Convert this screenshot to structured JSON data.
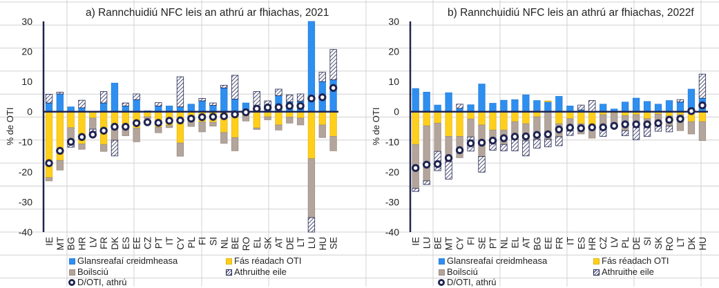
{
  "colors": {
    "credit_flows": "#2e8ff0",
    "real_gdp_growth": "#ffcf1c",
    "inflation": "#b3a59b",
    "other_changes": "#1f2450",
    "marker": "#1f2450",
    "axis": "#1f2450",
    "gridline": "#d0d0d0"
  },
  "legend": {
    "credit_flows": "Glansreafaí creidmheasa",
    "real_gdp_growth": "Fás réadach OTI",
    "inflation": "Boilsciú",
    "other_changes": "Athruithe eile",
    "debt_change": "D/OTI, athrú"
  },
  "chart_data": [
    {
      "type": "bar",
      "stacked": true,
      "title": "a) Rannchuidiú NFC leis an athrú ar fhiachas, 2021",
      "xlabel": "",
      "ylabel": "% de OTI",
      "ylim": [
        -40,
        30
      ],
      "yticks": [
        30,
        20,
        10,
        0,
        -10,
        -20,
        -30,
        -40
      ],
      "grid": false,
      "legend_position": "bottom",
      "categories": [
        "IE",
        "MT",
        "BG",
        "HR",
        "LV",
        "FR",
        "DK",
        "ES",
        "EE",
        "CZ",
        "PT",
        "IT",
        "CY",
        "PL",
        "FI",
        "SI",
        "NL",
        "BE",
        "RO",
        "EL",
        "SK",
        "AT",
        "DE",
        "LT",
        "LU",
        "HU",
        "SE"
      ],
      "series": [
        {
          "name": "Glansreafaí creidmheasa",
          "key": "credit_flows",
          "values": [
            2.9,
            5.9,
            1.6,
            1.3,
            0,
            2.9,
            9.5,
            1.9,
            4.0,
            0.3,
            1.9,
            1.9,
            1.6,
            2.5,
            3.6,
            2.1,
            7.9,
            4.2,
            2.9,
            0,
            1.7,
            5.3,
            3.3,
            3.5,
            32.0,
            10.0,
            10.6
          ]
        },
        {
          "name": "Fás réadach OTI",
          "key": "real_gdp_growth",
          "values": [
            -21.9,
            -16.2,
            -5.3,
            -10.7,
            -2.1,
            -10.9,
            -5.9,
            -5.9,
            -5.5,
            -1.7,
            -5.2,
            -4.6,
            -10.4,
            -1.3,
            -3.4,
            -3.5,
            -6.9,
            -8.6,
            -1.3,
            -5.4,
            -1.7,
            -4.4,
            -1.8,
            -2.1,
            -15.6,
            -4.4,
            -8.2
          ]
        },
        {
          "name": "Boilsciú",
          "key": "inflation",
          "values": [
            -1.1,
            -3.2,
            -5.6,
            -1.8,
            -3.7,
            -2.3,
            -3.6,
            -2.1,
            -4.5,
            -0.6,
            -1.8,
            -0.7,
            -4.4,
            -3.6,
            -3.3,
            -1.3,
            -3.6,
            -4.4,
            -1.8,
            -0.5,
            -1.0,
            -1.7,
            -2.0,
            -2.3,
            -19.6,
            -4.2,
            -4.8
          ]
        },
        {
          "name": "Athruithe eile",
          "key": "other_changes",
          "values": [
            2.9,
            0.6,
            -0.9,
            2.5,
            -1.5,
            3.8,
            -5.2,
            1.0,
            1.9,
            0,
            1.1,
            0,
            10.0,
            0,
            0.8,
            0.8,
            0.9,
            7.9,
            0,
            6.7,
            1.9,
            2.2,
            2.3,
            2.4,
            -5.0,
            3.1,
            10.1
          ]
        },
        {
          "name": "D/OTI, athrú",
          "key": "debt_change",
          "marker": "circle",
          "values": [
            -17.1,
            -13.0,
            -10.0,
            -8.4,
            -7.6,
            -6.3,
            -5.0,
            -5.0,
            -3.8,
            -3.5,
            -3.7,
            -3.0,
            -2.9,
            -2.3,
            -1.8,
            -1.7,
            -1.5,
            -0.9,
            -0.2,
            1.0,
            1.4,
            1.5,
            1.9,
            1.9,
            4.4,
            4.8,
            7.9
          ]
        }
      ]
    },
    {
      "type": "bar",
      "stacked": true,
      "title": "b) Rannchuidiú NFC leis an athrú ar fhiachas, 2022f",
      "xlabel": "",
      "ylabel": "% de OTI",
      "ylim": [
        -40,
        30
      ],
      "yticks": [
        30,
        20,
        10,
        0,
        -10,
        -20,
        -30,
        -40
      ],
      "grid": false,
      "legend_position": "bottom",
      "categories": [
        "IE",
        "LU",
        "BE",
        "MT",
        "CY",
        "FI",
        "SE",
        "PT",
        "NL",
        "EL",
        "AT",
        "BG",
        "EE",
        "FR",
        "IT",
        "ES",
        "HR",
        "CZ",
        "LV",
        "PL",
        "DE",
        "SI",
        "SK",
        "RO",
        "LT",
        "DK",
        "HU"
      ],
      "series": [
        {
          "name": "Glansreafaí creidmheasa",
          "key": "credit_flows",
          "values": [
            7.7,
            6.5,
            2.2,
            6.3,
            1.1,
            2.3,
            9.2,
            2.8,
            3.8,
            4.0,
            5.6,
            3.7,
            3.3,
            5.1,
            1.9,
            0.6,
            0,
            2.5,
            0.9,
            3.2,
            4.5,
            3.4,
            2.5,
            3.7,
            3.2,
            7.5,
            4.5
          ]
        },
        {
          "name": "Fás réadach OTI",
          "key": "real_gdp_growth",
          "values": [
            -10.9,
            -4.7,
            -3.8,
            -8.2,
            -8.2,
            -2.4,
            -4.4,
            -6.1,
            -6.1,
            -3.3,
            -4.0,
            -1.7,
            0.3,
            -4.0,
            -2.3,
            -4.0,
            -4.4,
            -1.0,
            -0.5,
            -1.3,
            -1.0,
            -2.3,
            -0.8,
            -1.4,
            -1.0,
            -3.3,
            -3.3
          ]
        },
        {
          "name": "Boilsciú",
          "key": "inflation",
          "values": [
            -14.6,
            -18.3,
            -9.4,
            -8.4,
            -7.1,
            -6.0,
            -10.5,
            -4.2,
            -4.8,
            -5.5,
            -5.7,
            -7.5,
            -9.2,
            -4.3,
            -4.0,
            -3.4,
            -4.4,
            -4.9,
            -3.9,
            -5.0,
            -4.3,
            -3.0,
            -4.0,
            -3.4,
            -5.3,
            -4.1,
            -6.3
          ]
        },
        {
          "name": "Athruithe eile",
          "key": "other_changes",
          "values": [
            -1.0,
            -1.2,
            -6.4,
            -5.8,
            1.4,
            -4.7,
            -5.2,
            -2.5,
            -2.1,
            -4.2,
            -5.0,
            -2.9,
            -2.5,
            -3.0,
            -1.6,
            1.6,
            3.7,
            -2.3,
            0,
            -1.7,
            -4.0,
            -2.9,
            -1.7,
            -1.9,
            0.8,
            0,
            8.0
          ]
        },
        {
          "name": "D/OTI, athrú",
          "key": "debt_change",
          "marker": "circle",
          "values": [
            -18.7,
            -17.6,
            -17.4,
            -15.4,
            -12.8,
            -10.5,
            -10.3,
            -9.6,
            -8.8,
            -8.3,
            -8.2,
            -7.7,
            -7.5,
            -5.9,
            -5.3,
            -5.5,
            -5.2,
            -5.2,
            -4.7,
            -4.2,
            -4.2,
            -4.2,
            -3.8,
            -2.7,
            -2.4,
            0.2,
            2.1
          ]
        }
      ]
    }
  ]
}
